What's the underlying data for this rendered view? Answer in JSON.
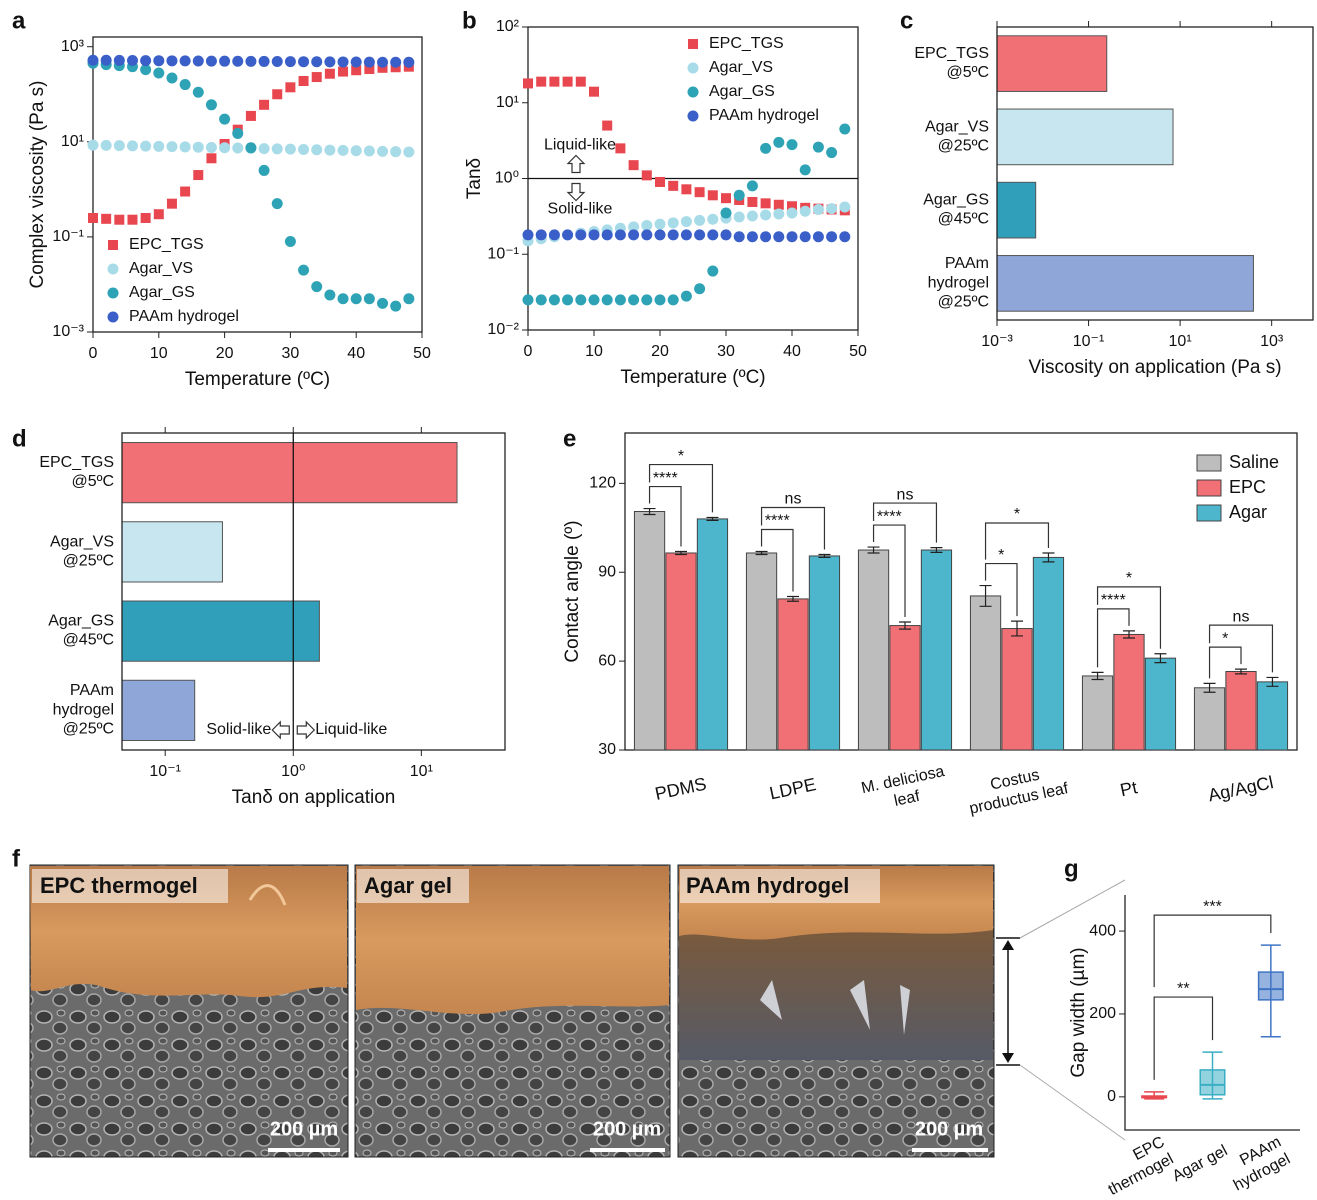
{
  "chart_data": [
    {
      "type": "scatter",
      "panel": "a",
      "x_label": "Temperature (ºC)",
      "y_label": "Complex viscosity (Pa s)",
      "x": [
        0,
        2,
        4,
        6,
        8,
        10,
        12,
        14,
        16,
        18,
        20,
        22,
        24,
        26,
        28,
        30,
        32,
        34,
        36,
        38,
        40,
        42,
        44,
        46,
        48
      ],
      "xlim": [
        0,
        50
      ],
      "xticks": [
        0,
        10,
        20,
        30,
        40,
        50
      ],
      "ylim": [
        0.001,
        1600
      ],
      "log_y": true,
      "yticks": [
        {
          "value": 0.001,
          "label": "10⁻³"
        },
        {
          "value": 0.1,
          "label": "10⁻¹"
        },
        {
          "value": 10,
          "label": "10¹"
        },
        {
          "value": 1000,
          "label": "10³"
        }
      ],
      "legend_position": "lower left",
      "series": [
        {
          "name": "EPC_TGS",
          "color": "#e8474f",
          "marker": "square",
          "values": [
            0.25,
            0.24,
            0.23,
            0.23,
            0.25,
            0.3,
            0.5,
            0.9,
            2,
            4.5,
            9,
            18,
            35,
            60,
            100,
            140,
            190,
            230,
            270,
            300,
            320,
            340,
            360,
            370,
            380
          ]
        },
        {
          "name": "Agar_VS",
          "color": "#a8dbe8",
          "marker": "circle",
          "values": [
            8.5,
            8.4,
            8.3,
            8.2,
            8.1,
            8,
            7.9,
            7.8,
            7.7,
            7.6,
            7.5,
            7.4,
            7.3,
            7.2,
            7.1,
            7,
            6.9,
            6.8,
            6.7,
            6.6,
            6.5,
            6.4,
            6.3,
            6.2,
            6.1
          ]
        },
        {
          "name": "Agar_GS",
          "color": "#2ea3b5",
          "marker": "circle",
          "values": [
            450,
            420,
            400,
            380,
            330,
            280,
            220,
            160,
            110,
            60,
            30,
            15,
            7.5,
            2.5,
            0.5,
            0.08,
            0.02,
            0.009,
            0.006,
            0.005,
            0.005,
            0.005,
            0.004,
            0.0035,
            0.005
          ]
        },
        {
          "name": "PAAm hydrogel",
          "color": "#3a5fc8",
          "marker": "circle",
          "values": [
            520,
            518,
            515,
            512,
            510,
            508,
            505,
            503,
            500,
            498,
            496,
            494,
            492,
            490,
            488,
            486,
            484,
            482,
            480,
            478,
            476,
            474,
            472,
            471,
            470
          ]
        }
      ]
    },
    {
      "type": "scatter",
      "panel": "b",
      "x_label": "Temperature (ºC)",
      "y_label": "Tanδ",
      "x": [
        0,
        2,
        4,
        6,
        8,
        10,
        12,
        14,
        16,
        18,
        20,
        22,
        24,
        26,
        28,
        30,
        32,
        34,
        36,
        38,
        40,
        42,
        44,
        46,
        48
      ],
      "xlim": [
        0,
        50
      ],
      "xticks": [
        0,
        10,
        20,
        30,
        40,
        50
      ],
      "ylim": [
        0.01,
        100
      ],
      "log_y": true,
      "yticks": [
        {
          "value": 0.01,
          "label": "10⁻²"
        },
        {
          "value": 0.1,
          "label": "10⁻¹"
        },
        {
          "value": 1,
          "label": "10⁰"
        },
        {
          "value": 10,
          "label": "10¹"
        },
        {
          "value": 100,
          "label": "10²"
        }
      ],
      "legend_position": "upper right",
      "reference_line": 1,
      "annotations": [
        "Liquid-like",
        "Solid-like"
      ],
      "series": [
        {
          "name": "EPC_TGS",
          "color": "#e8474f",
          "marker": "square",
          "values": [
            18,
            19,
            19,
            19,
            19,
            14,
            5,
            2.5,
            1.5,
            1.1,
            0.9,
            0.8,
            0.72,
            0.66,
            0.6,
            0.55,
            0.52,
            0.49,
            0.47,
            0.45,
            0.43,
            0.41,
            0.4,
            0.39,
            0.38
          ]
        },
        {
          "name": "Agar_VS",
          "color": "#a8dbe8",
          "marker": "circle",
          "values": [
            0.15,
            0.16,
            0.17,
            0.18,
            0.19,
            0.2,
            0.21,
            0.22,
            0.23,
            0.24,
            0.25,
            0.26,
            0.27,
            0.28,
            0.29,
            0.3,
            0.31,
            0.32,
            0.33,
            0.34,
            0.35,
            0.37,
            0.39,
            0.4,
            0.42
          ]
        },
        {
          "name": "Agar_GS",
          "color": "#2ea3b5",
          "marker": "circle",
          "values": [
            0.025,
            0.025,
            0.025,
            0.025,
            0.025,
            0.025,
            0.025,
            0.025,
            0.025,
            0.025,
            0.025,
            0.025,
            0.028,
            0.035,
            0.06,
            0.35,
            0.6,
            0.8,
            2.5,
            3,
            2.8,
            1.3,
            2.6,
            2.2,
            4.5
          ]
        },
        {
          "name": "PAAm hydrogel",
          "color": "#3a5fc8",
          "marker": "circle",
          "values": [
            0.18,
            0.18,
            0.18,
            0.18,
            0.18,
            0.18,
            0.18,
            0.18,
            0.18,
            0.18,
            0.18,
            0.18,
            0.18,
            0.18,
            0.18,
            0.18,
            0.17,
            0.17,
            0.17,
            0.17,
            0.17,
            0.17,
            0.17,
            0.17,
            0.17
          ]
        }
      ]
    },
    {
      "type": "bar",
      "panel": "c",
      "orientation": "horizontal",
      "x_label": "Viscosity on application (Pa s)",
      "categories": [
        "EPC_TGS\n@5ºC",
        "Agar_VS\n@25ºC",
        "Agar_GS\n@45ºC",
        "PAAm\nhydrogel\n@25ºC"
      ],
      "values": [
        0.25,
        7,
        0.007,
        400
      ],
      "colors": [
        "#f07075",
        "#c8e6ef",
        "#2f9fba",
        "#8ea6d8"
      ],
      "xlim": [
        0.001,
        8000
      ],
      "log_x": true,
      "top_ticks": true,
      "xticks": [
        {
          "value": 0.001,
          "label": "10⁻³"
        },
        {
          "value": 0.1,
          "label": "10⁻¹"
        },
        {
          "value": 10,
          "label": "10¹"
        },
        {
          "value": 1000,
          "label": "10³"
        }
      ]
    },
    {
      "type": "bar",
      "panel": "d",
      "orientation": "horizontal",
      "x_label": "Tanδ on application",
      "categories": [
        "EPC_TGS\n@5ºC",
        "Agar_VS\n@25ºC",
        "Agar_GS\n@45ºC",
        "PAAm\nhydrogel\n@25ºC"
      ],
      "values": [
        19,
        0.28,
        1.6,
        0.17
      ],
      "colors": [
        "#f07075",
        "#c8e6ef",
        "#2f9fba",
        "#8ea6d8"
      ],
      "xlim": [
        0.046,
        45
      ],
      "log_x": true,
      "top_ticks": true,
      "xticks": [
        {
          "value": 0.1,
          "label": "10⁻¹"
        },
        {
          "value": 1,
          "label": "10⁰"
        },
        {
          "value": 10,
          "label": "10¹"
        }
      ],
      "reference_line": 1,
      "annotations": [
        "Solid-like",
        "Liquid-like"
      ]
    },
    {
      "type": "bar",
      "panel": "e",
      "orientation": "vertical",
      "y_label": "Contact angle (º)",
      "categories": [
        "PDMS",
        "LDPE",
        "M. deliciosa\nleaf",
        "Costus\nproductus leaf",
        "Pt",
        "Ag/AgCl"
      ],
      "ylim": [
        30,
        137
      ],
      "yticks": [
        30,
        60,
        90,
        120
      ],
      "legend_position": "upper right",
      "series": [
        {
          "name": "Saline",
          "color": "#bdbdbd",
          "values": [
            110.5,
            96.5,
            97.5,
            82,
            55,
            51
          ],
          "errors": [
            1,
            0.5,
            1,
            3.5,
            1.2,
            1.5
          ]
        },
        {
          "name": "EPC",
          "color": "#f07075",
          "values": [
            96.5,
            81,
            72,
            71,
            69,
            56.5
          ],
          "errors": [
            0.5,
            0.8,
            1.2,
            2.5,
            1.2,
            0.8
          ]
        },
        {
          "name": "Agar",
          "color": "#4db6cc",
          "values": [
            108,
            95.5,
            97.5,
            95,
            61,
            53
          ],
          "errors": [
            0.5,
            0.5,
            0.8,
            1.5,
            1.5,
            1.5
          ]
        }
      ],
      "significance": [
        [
          "****",
          "*"
        ],
        [
          "****",
          "ns"
        ],
        [
          "****",
          "ns"
        ],
        [
          "*",
          "*"
        ],
        [
          "****",
          "*"
        ],
        [
          "*",
          "ns"
        ]
      ]
    },
    {
      "type": "box",
      "panel": "g",
      "y_label": "Gap width (µm)",
      "categories": [
        "EPC\nthermogel",
        "Agar gel",
        "PAAm\nhydrogel"
      ],
      "boxes": [
        {
          "min": -5,
          "q1": -2,
          "median": 0,
          "q3": 2,
          "max": 12
        },
        {
          "min": -5,
          "q1": 5,
          "median": 29,
          "q3": 65,
          "max": 108
        },
        {
          "min": 145,
          "q1": 234,
          "median": 260,
          "q3": 301,
          "max": 366
        }
      ],
      "colors": [
        "#e8474f",
        "#3aaec4",
        "#3f74c4"
      ],
      "ylim": [
        -80,
        487
      ],
      "yticks": [
        0,
        200,
        400
      ],
      "significance": [
        "**",
        "***"
      ]
    }
  ],
  "panel_f": {
    "label": "f",
    "images": [
      {
        "title": "EPC thermogel",
        "scale_bar": "200 µm"
      },
      {
        "title": "Agar gel",
        "scale_bar": "200 µm"
      },
      {
        "title": "PAAm hydrogel",
        "scale_bar": "200 µm"
      }
    ]
  }
}
